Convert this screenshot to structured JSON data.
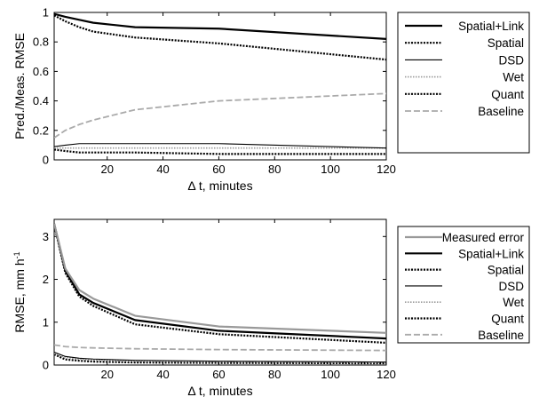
{
  "chart_data": [
    {
      "type": "line",
      "xlabel": "Δ t, minutes",
      "ylabel": "Pred./Meas. RMSE",
      "xlim": [
        1,
        120
      ],
      "ylim": [
        0,
        1
      ],
      "xticks": [
        20,
        40,
        60,
        80,
        100,
        120
      ],
      "yticks": [
        0,
        0.2,
        0.4,
        0.6,
        0.8,
        1
      ],
      "ytick_labels": [
        "0",
        "0.2",
        "0.4",
        "0.6",
        "0.8",
        "1"
      ],
      "legend_position": "top-right (outside plot area)",
      "x": [
        1,
        5,
        10,
        15,
        30,
        60,
        120
      ],
      "series": [
        {
          "name": "Spatial+Link",
          "color": "#000000",
          "style": "solid-thick",
          "values": [
            0.99,
            0.97,
            0.95,
            0.93,
            0.9,
            0.89,
            0.82
          ]
        },
        {
          "name": "Spatial",
          "color": "#000000",
          "style": "dotted-thick",
          "values": [
            0.98,
            0.94,
            0.9,
            0.87,
            0.83,
            0.79,
            0.68
          ]
        },
        {
          "name": "DSD",
          "color": "#000000",
          "style": "solid-thin",
          "values": [
            0.09,
            0.1,
            0.11,
            0.11,
            0.11,
            0.11,
            0.08
          ]
        },
        {
          "name": "Wet",
          "color": "#999999",
          "style": "dotted-thin",
          "values": [
            0.08,
            0.08,
            0.08,
            0.08,
            0.08,
            0.08,
            0.08
          ]
        },
        {
          "name": "Quant",
          "color": "#000000",
          "style": "dotted-thick",
          "values": [
            0.07,
            0.06,
            0.05,
            0.05,
            0.05,
            0.04,
            0.04
          ]
        },
        {
          "name": "Baseline",
          "color": "#aaaaaa",
          "style": "dashed",
          "values": [
            0.15,
            0.2,
            0.24,
            0.27,
            0.34,
            0.4,
            0.45
          ]
        }
      ]
    },
    {
      "type": "line",
      "xlabel": "Δ t, minutes",
      "ylabel": "RMSE, mm h",
      "ylabel_superscript": "-1",
      "xlim": [
        1,
        120
      ],
      "ylim": [
        0,
        3.4
      ],
      "xticks": [
        20,
        40,
        60,
        80,
        100,
        120
      ],
      "yticks": [
        0,
        1,
        2,
        3
      ],
      "ytick_labels": [
        "0",
        "1",
        "2",
        "3"
      ],
      "legend_position": "top-right (outside plot area)",
      "x": [
        1,
        5,
        10,
        15,
        30,
        60,
        120
      ],
      "series": [
        {
          "name": "Measured error",
          "color": "#999999",
          "style": "solid-thick",
          "values": [
            3.3,
            2.25,
            1.75,
            1.55,
            1.15,
            0.9,
            0.75
          ]
        },
        {
          "name": "Spatial+Link",
          "color": "#000000",
          "style": "solid-thick",
          "values": [
            3.3,
            2.2,
            1.65,
            1.45,
            1.05,
            0.8,
            0.62
          ]
        },
        {
          "name": "Spatial",
          "color": "#000000",
          "style": "dotted-thick",
          "values": [
            3.28,
            2.15,
            1.6,
            1.38,
            0.95,
            0.72,
            0.52
          ]
        },
        {
          "name": "DSD",
          "color": "#000000",
          "style": "solid-thin",
          "values": [
            0.3,
            0.2,
            0.16,
            0.14,
            0.11,
            0.09,
            0.07
          ]
        },
        {
          "name": "Wet",
          "color": "#999999",
          "style": "dotted-thin",
          "values": [
            0.27,
            0.18,
            0.14,
            0.12,
            0.09,
            0.08,
            0.06
          ]
        },
        {
          "name": "Quant",
          "color": "#000000",
          "style": "dotted-thick",
          "values": [
            0.25,
            0.13,
            0.1,
            0.08,
            0.06,
            0.05,
            0.04
          ]
        },
        {
          "name": "Baseline",
          "color": "#aaaaaa",
          "style": "dashed",
          "values": [
            0.47,
            0.43,
            0.41,
            0.4,
            0.38,
            0.36,
            0.34
          ]
        }
      ]
    }
  ]
}
